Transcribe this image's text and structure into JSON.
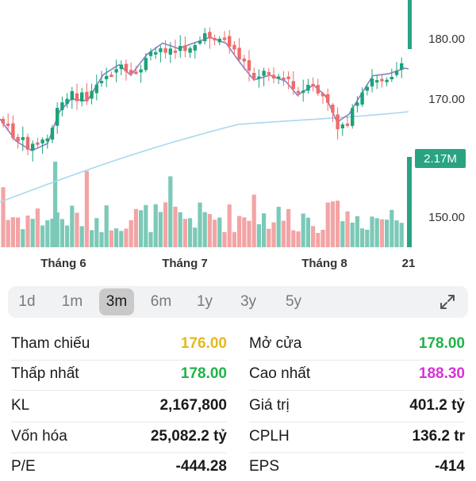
{
  "chart": {
    "price_axis": [
      "180.00",
      "170.00",
      "150.00"
    ],
    "volume_badge": "2.17M",
    "month_labels": [
      "Tháng 6",
      "Tháng 7",
      "Tháng 8"
    ],
    "edge_label": "21",
    "colors": {
      "up": "#1aa37a",
      "down": "#ef6b6b",
      "volume_up": "#7cc9b7",
      "volume_down": "#f3a4a4",
      "ma_short": "#8b7fc4",
      "ma_long": "#a9d8ee",
      "badge": "#2aa383"
    }
  },
  "periods": {
    "items": [
      "1d",
      "1m",
      "3m",
      "6m",
      "1y",
      "3y",
      "5y"
    ],
    "selected": "3m",
    "expand_icon": "expand-icon"
  },
  "stats": {
    "tham_chieu": {
      "label": "Tham chiếu",
      "value": "176.00",
      "color": "#e6b81e"
    },
    "mo_cua": {
      "label": "Mở cửa",
      "value": "178.00",
      "color": "#21b34a"
    },
    "thap_nhat": {
      "label": "Thấp nhất",
      "value": "178.00",
      "color": "#21b34a"
    },
    "cao_nhat": {
      "label": "Cao nhất",
      "value": "188.30",
      "color": "#d633d6"
    },
    "kl": {
      "label": "KL",
      "value": "2,167,800",
      "color": "#1a1a1a"
    },
    "gia_tri": {
      "label": "Giá trị",
      "value": "401.2 tỷ",
      "color": "#1a1a1a"
    },
    "von_hoa": {
      "label": "Vốn hóa",
      "value": "25,082.2 tỷ",
      "color": "#1a1a1a"
    },
    "cplh": {
      "label": "CPLH",
      "value": "136.2 tr",
      "color": "#1a1a1a"
    },
    "pe": {
      "label": "P/E",
      "value": "-444.28",
      "color": "#1a1a1a"
    },
    "eps": {
      "label": "EPS",
      "value": "-414",
      "color": "#1a1a1a"
    }
  }
}
